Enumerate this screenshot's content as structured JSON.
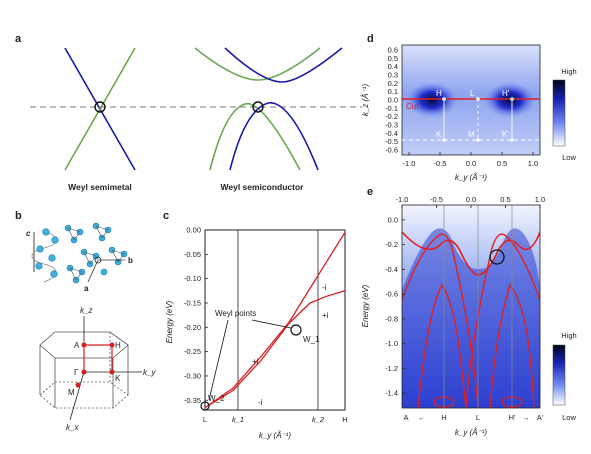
{
  "panel_a": {
    "label": "a",
    "left_caption": "Weyl semimetal",
    "right_caption": "Weyl semiconductor"
  },
  "panel_b": {
    "label": "b",
    "crystal_axes": {
      "a": "a",
      "b": "b",
      "c": "c"
    },
    "bz_points": {
      "A": "A",
      "H": "H",
      "gamma": "Γ",
      "K": "K",
      "M": "M"
    },
    "bz_axes": {
      "kx": "k_x",
      "ky": "k_y",
      "kz": "k_z"
    }
  },
  "panel_c": {
    "label": "c",
    "ylabel": "Energy (eV)",
    "xlabel": "k_y (Å⁻¹)",
    "yticks": [
      "0.00",
      "-0.05",
      "-0.10",
      "-0.15",
      "-0.20",
      "-0.25",
      "-0.30",
      "-0.35"
    ],
    "xticks": [
      "L",
      "k_1",
      "k_2",
      "H"
    ],
    "annotations": {
      "weyl_points": "Weyl points",
      "w1": "W_1",
      "w2": "W_2",
      "plus_i_1": "+i",
      "minus_i_1": "-i",
      "plus_i_2": "+i",
      "minus_i_2": "-i"
    },
    "accent_color": "#d42020"
  },
  "panel_d": {
    "label": "d",
    "ylabel": "k_z (Å⁻¹)",
    "xlabel": "k_y (Å⁻¹)",
    "yticks": [
      "0.6",
      "0.5",
      "0.4",
      "0.3",
      "0.2",
      "0.1",
      "0.0",
      "-0.1",
      "-0.2",
      "-0.3",
      "-0.4",
      "-0.5",
      "-0.6"
    ],
    "xticks": [
      "-1.0",
      "-0.5",
      "0.0",
      "0.5",
      "1.0"
    ],
    "points": {
      "H": "H",
      "L": "L",
      "H_prime": "H'",
      "K": "K",
      "M": "M",
      "K_prime": "K'"
    },
    "cut_label": "Cut i",
    "colorbar": {
      "high": "High",
      "low": "Low"
    }
  },
  "panel_e": {
    "label": "e",
    "ylabel": "Energy (eV)",
    "xlabel": "k_y (Å⁻¹)",
    "top_ticks": [
      "-1.0",
      "-0.5",
      "0.0",
      "0.5",
      "1.0"
    ],
    "yticks": [
      "0.0",
      "-0.2",
      "-0.4",
      "-0.6",
      "-0.8",
      "-1.0",
      "-1.2",
      "-1.4"
    ],
    "bottom_labels": {
      "A_left": "A",
      "H": "H",
      "L": "L",
      "H_prime": "H'",
      "A_right": "A'"
    },
    "colorbar": {
      "high": "High",
      "low": "Low"
    }
  },
  "chart_data": {
    "type": "line",
    "xlabel": "k_y (Å⁻¹)",
    "ylabel": "Energy (eV)",
    "x": [
      "L",
      "k_1",
      "k_2",
      "H"
    ],
    "ylim": [
      -0.37,
      0.0
    ],
    "series": [
      {
        "name": "+i",
        "points": [
          [
            0.0,
            -0.365
          ],
          [
            0.2,
            -0.325
          ],
          [
            0.4,
            -0.26
          ],
          [
            0.6,
            -0.19
          ],
          [
            0.75,
            -0.12
          ],
          [
            0.88,
            -0.06
          ],
          [
            1.0,
            -0.005
          ]
        ]
      },
      {
        "name": "-i",
        "points": [
          [
            0.0,
            -0.365
          ],
          [
            0.2,
            -0.33
          ],
          [
            0.4,
            -0.268
          ],
          [
            0.6,
            -0.192
          ],
          [
            0.75,
            -0.15
          ],
          [
            0.88,
            -0.135
          ],
          [
            1.0,
            -0.125
          ]
        ]
      }
    ]
  }
}
